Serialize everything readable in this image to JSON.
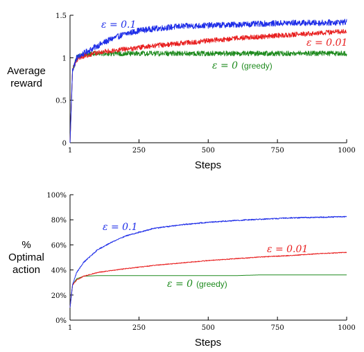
{
  "chart_data": [
    {
      "type": "line",
      "xlabel": "Steps",
      "ylabel_lines": [
        "Average",
        "reward"
      ],
      "xlim": [
        1,
        1000
      ],
      "ylim": [
        0,
        1.5
      ],
      "x_ticks": [
        1,
        250,
        500,
        750,
        1000
      ],
      "x_tick_labels": [
        "1",
        "250",
        "500",
        "750",
        "1000"
      ],
      "y_ticks": [
        0,
        0.5,
        1,
        1.5
      ],
      "y_tick_labels": [
        "0",
        "0.5",
        "1",
        "1.5"
      ],
      "series": [
        {
          "name": "ε = 0.1",
          "label_parts": [
            "ε = 0.1",
            ""
          ],
          "color": "#1f2ee8",
          "noise": 0.035,
          "x": [
            1,
            10,
            25,
            50,
            100,
            150,
            200,
            250,
            300,
            400,
            500,
            600,
            700,
            800,
            900,
            1000
          ],
          "y": [
            0.0,
            0.85,
            1.0,
            1.05,
            1.14,
            1.22,
            1.28,
            1.32,
            1.34,
            1.37,
            1.38,
            1.39,
            1.4,
            1.41,
            1.41,
            1.42
          ]
        },
        {
          "name": "ε = 0.01",
          "label_parts": [
            "ε = 0.01",
            ""
          ],
          "color": "#e81f1f",
          "noise": 0.03,
          "x": [
            1,
            10,
            25,
            50,
            100,
            200,
            300,
            400,
            500,
            600,
            700,
            800,
            900,
            1000
          ],
          "y": [
            0.0,
            0.85,
            0.98,
            1.02,
            1.06,
            1.1,
            1.14,
            1.17,
            1.2,
            1.23,
            1.25,
            1.27,
            1.29,
            1.31
          ]
        },
        {
          "name": "ε = 0 (greedy)",
          "label_parts": [
            "ε = 0",
            "(greedy)"
          ],
          "color": "#1d8a1d",
          "noise": 0.03,
          "x": [
            1,
            10,
            25,
            50,
            100,
            200,
            300,
            400,
            500,
            600,
            700,
            800,
            900,
            1000
          ],
          "y": [
            0.0,
            0.85,
            1.0,
            1.04,
            1.05,
            1.05,
            1.05,
            1.05,
            1.05,
            1.05,
            1.05,
            1.05,
            1.05,
            1.05
          ]
        }
      ]
    },
    {
      "type": "line",
      "xlabel": "Steps",
      "ylabel_lines": [
        "%",
        "Optimal",
        "action"
      ],
      "xlim": [
        1,
        1000
      ],
      "ylim": [
        0,
        100
      ],
      "x_ticks": [
        1,
        250,
        500,
        750,
        1000
      ],
      "x_tick_labels": [
        "1",
        "250",
        "500",
        "750",
        "1000"
      ],
      "y_ticks": [
        0,
        20,
        40,
        60,
        80,
        100
      ],
      "y_tick_labels": [
        "0%",
        "20%",
        "40%",
        "60%",
        "80%",
        "100%"
      ],
      "series": [
        {
          "name": "ε = 0.1",
          "label_parts": [
            "ε = 0.1",
            ""
          ],
          "color": "#1f2ee8",
          "noise": 0.45,
          "x": [
            1,
            10,
            25,
            50,
            100,
            150,
            200,
            250,
            300,
            400,
            500,
            600,
            700,
            800,
            900,
            1000
          ],
          "y": [
            10,
            28,
            38,
            46,
            56,
            62,
            67,
            70,
            73,
            76,
            78,
            79.5,
            80.5,
            81.5,
            82,
            82.5
          ]
        },
        {
          "name": "ε = 0.01",
          "label_parts": [
            "ε = 0.01",
            ""
          ],
          "color": "#e81f1f",
          "noise": 0.3,
          "x": [
            1,
            10,
            25,
            50,
            100,
            200,
            300,
            400,
            500,
            600,
            700,
            800,
            900,
            1000
          ],
          "y": [
            10,
            28,
            32,
            35,
            38,
            41,
            43.5,
            45.5,
            47.5,
            49,
            50.5,
            51.5,
            53,
            54
          ]
        },
        {
          "name": "ε = 0 (greedy)",
          "label_parts": [
            "ε = 0",
            "(greedy)"
          ],
          "color": "#1d8a1d",
          "noise": 0.0,
          "x": [
            1,
            10,
            25,
            50,
            100,
            200,
            300,
            400,
            500,
            600,
            680,
            700,
            800,
            900,
            1000
          ],
          "y": [
            10,
            28,
            33,
            35,
            35.5,
            35.5,
            35.5,
            35.5,
            35.5,
            35.5,
            36,
            36,
            36,
            36,
            36
          ]
        }
      ]
    }
  ]
}
